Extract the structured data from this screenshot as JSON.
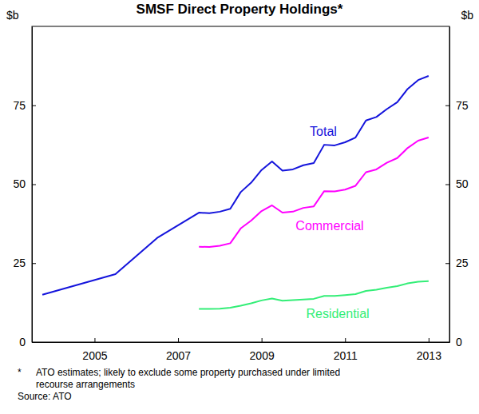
{
  "chart_data": {
    "type": "line",
    "title": "SMSF Direct Property Holdings*",
    "ylabel": "$b",
    "x": [
      2004.25,
      2006.0,
      2007.0,
      2008.0,
      2008.25,
      2008.5,
      2008.75,
      2009.0,
      2009.25,
      2009.5,
      2009.75,
      2010.0,
      2010.25,
      2010.5,
      2010.75,
      2011.0,
      2011.25,
      2011.5,
      2011.75,
      2012.0,
      2012.25,
      2012.5,
      2012.75,
      2013.0,
      2013.25,
      2013.5
    ],
    "series": [
      {
        "name": "Total",
        "color": "#1414dc",
        "values": [
          15,
          21.5,
          33,
          41,
          40.8,
          41.3,
          42.2,
          47.5,
          50.5,
          54.5,
          57.2,
          54.3,
          54.7,
          56,
          56.7,
          62.5,
          62.3,
          63.3,
          64.8,
          70.2,
          71.3,
          73.8,
          76,
          80.2,
          83,
          84.3
        ]
      },
      {
        "name": "Commercial",
        "color": "#ff00ff",
        "values": [
          null,
          null,
          null,
          30.2,
          30.1,
          30.5,
          31.3,
          36,
          38.5,
          41.5,
          43.3,
          41,
          41.3,
          42.5,
          43,
          47.8,
          47.7,
          48.3,
          49.5,
          53.8,
          54.7,
          56.8,
          58.3,
          61.5,
          63.8,
          64.8
        ]
      },
      {
        "name": "Residential",
        "color": "#33ee77",
        "values": [
          null,
          null,
          null,
          10.5,
          10.5,
          10.6,
          10.9,
          11.5,
          12.3,
          13.2,
          13.8,
          13.1,
          13.3,
          13.5,
          13.7,
          14.6,
          14.6,
          14.9,
          15.2,
          16.2,
          16.6,
          17.2,
          17.7,
          18.6,
          19.1,
          19.3
        ]
      }
    ],
    "xlim": [
      2004,
      2014
    ],
    "xticks": [
      {
        "value": 2005.5,
        "label": "2005"
      },
      {
        "value": 2007.5,
        "label": "2007"
      },
      {
        "value": 2009.5,
        "label": "2009"
      },
      {
        "value": 2011.5,
        "label": "2011"
      },
      {
        "value": 2013.5,
        "label": "2013"
      }
    ],
    "ylim": [
      0,
      100
    ],
    "yticks": [
      0,
      25,
      50,
      75
    ],
    "grid": false,
    "footnote": [
      "*",
      "ATO estimates; likely to exclude some property purchased under limited",
      "recourse arrangements"
    ],
    "source": "Source: ATO"
  }
}
